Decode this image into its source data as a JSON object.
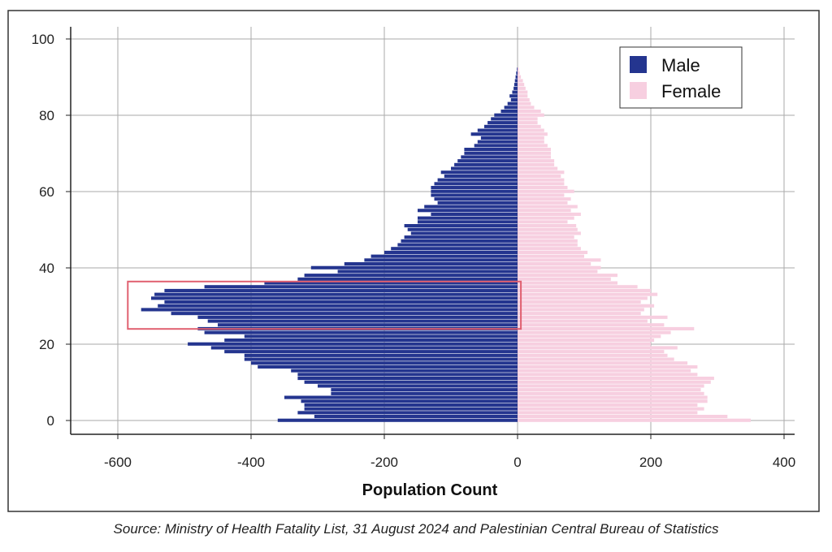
{
  "chart_data": {
    "type": "bar",
    "orientation": "horizontal",
    "xlabel": "Population Count",
    "ylabel": "",
    "xlim": [
      -670,
      410
    ],
    "ylim": [
      -4,
      103
    ],
    "xticks": [
      -600,
      -400,
      -200,
      0,
      200,
      400
    ],
    "yticks": [
      0,
      20,
      40,
      60,
      80,
      100
    ],
    "grid": true,
    "legend_position": "top-right",
    "highlight_box": {
      "x_range": [
        -585,
        5
      ],
      "age_range": [
        24,
        36
      ],
      "color": "#e06070"
    },
    "ages": [
      0,
      1,
      2,
      3,
      4,
      5,
      6,
      7,
      8,
      9,
      10,
      11,
      12,
      13,
      14,
      15,
      16,
      17,
      18,
      19,
      20,
      21,
      22,
      23,
      24,
      25,
      26,
      27,
      28,
      29,
      30,
      31,
      32,
      33,
      34,
      35,
      36,
      37,
      38,
      39,
      40,
      41,
      42,
      43,
      44,
      45,
      46,
      47,
      48,
      49,
      50,
      51,
      52,
      53,
      54,
      55,
      56,
      57,
      58,
      59,
      60,
      61,
      62,
      63,
      64,
      65,
      66,
      67,
      68,
      69,
      70,
      71,
      72,
      73,
      74,
      75,
      76,
      77,
      78,
      79,
      80,
      81,
      82,
      83,
      84,
      85,
      86,
      87,
      88,
      89,
      90,
      91,
      92
    ],
    "series": [
      {
        "name": "Male",
        "color": "#24358f",
        "values": [
          -360,
          -305,
          -330,
          -320,
          -320,
          -325,
          -350,
          -280,
          -280,
          -300,
          -320,
          -330,
          -330,
          -340,
          -390,
          -400,
          -410,
          -410,
          -440,
          -460,
          -495,
          -440,
          -410,
          -470,
          -480,
          -450,
          -465,
          -480,
          -520,
          -565,
          -540,
          -530,
          -550,
          -545,
          -530,
          -470,
          -380,
          -330,
          -320,
          -270,
          -310,
          -260,
          -230,
          -220,
          -200,
          -190,
          -180,
          -175,
          -170,
          -160,
          -165,
          -170,
          -150,
          -150,
          -130,
          -150,
          -140,
          -120,
          -125,
          -130,
          -130,
          -130,
          -125,
          -120,
          -110,
          -115,
          -100,
          -95,
          -90,
          -85,
          -80,
          -80,
          -65,
          -60,
          -55,
          -70,
          -60,
          -50,
          -45,
          -40,
          -35,
          -25,
          -20,
          -15,
          -10,
          -12,
          -8,
          -6,
          -5,
          -4,
          -3,
          -2,
          -1
        ]
      },
      {
        "name": "Female",
        "color": "#f7cfe0",
        "values": [
          350,
          315,
          270,
          280,
          270,
          285,
          285,
          280,
          275,
          280,
          290,
          295,
          270,
          260,
          270,
          255,
          235,
          225,
          220,
          240,
          200,
          205,
          215,
          230,
          265,
          220,
          195,
          225,
          185,
          190,
          205,
          185,
          195,
          210,
          200,
          180,
          150,
          140,
          150,
          120,
          125,
          110,
          125,
          100,
          105,
          95,
          90,
          90,
          85,
          95,
          90,
          88,
          75,
          85,
          95,
          80,
          90,
          75,
          80,
          70,
          85,
          75,
          70,
          70,
          65,
          70,
          60,
          55,
          55,
          50,
          50,
          50,
          45,
          40,
          40,
          45,
          40,
          35,
          30,
          30,
          40,
          35,
          25,
          20,
          18,
          15,
          15,
          12,
          10,
          8,
          5,
          3,
          2
        ]
      }
    ]
  },
  "source": "Source: Ministry of Health Fatality List, 31 August 2024 and Palestinian Central Bureau of Statistics"
}
